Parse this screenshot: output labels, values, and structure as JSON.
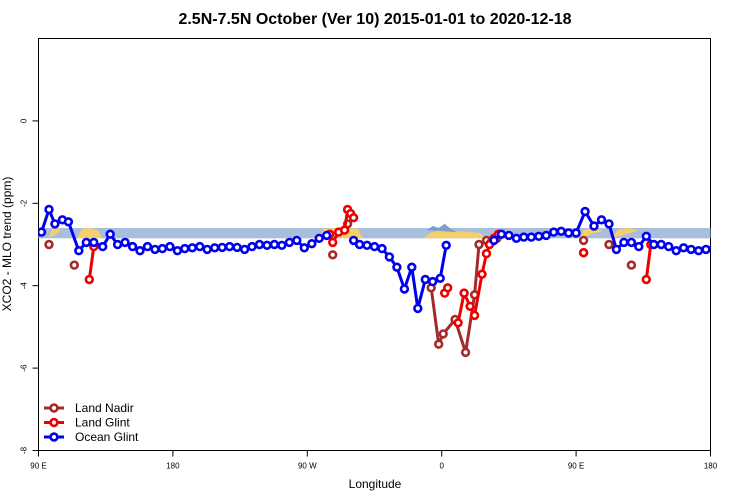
{
  "chart_data": {
    "type": "line",
    "title": "2.5N-7.5N October (Ver 10)   2015-01-01 to 2020-12-18",
    "xlabel": "Longitude",
    "ylabel": "XCO2 - MLO trend (ppm)",
    "xlim": [
      0,
      450
    ],
    "ylim": [
      -8,
      2
    ],
    "x_ticks": [
      {
        "value": 0,
        "label": "90 E"
      },
      {
        "value": 90,
        "label": "180"
      },
      {
        "value": 180,
        "label": "90 W"
      },
      {
        "value": 270,
        "label": "0"
      },
      {
        "value": 360,
        "label": "90 E"
      },
      {
        "value": 450,
        "label": "180"
      }
    ],
    "y_ticks": [
      {
        "value": 0,
        "label": "0"
      },
      {
        "value": -2,
        "label": "-2"
      },
      {
        "value": -4,
        "label": "-4"
      },
      {
        "value": -6,
        "label": "-6"
      },
      {
        "value": -8,
        "label": "-8"
      }
    ],
    "legend_position": "bottom-left",
    "background_band": {
      "y_low": -2.85,
      "y_high": -2.6,
      "color": "#a8bedd"
    },
    "land_fill": {
      "color": "#f5cf6a",
      "segments": [
        [
          [
            7,
            -2.85
          ],
          [
            9,
            -2.62
          ],
          [
            13,
            -2.6
          ],
          [
            15,
            -2.66
          ]
        ],
        [
          [
            26,
            -2.85
          ],
          [
            29,
            -2.62
          ],
          [
            35,
            -2.6
          ],
          [
            40,
            -2.66
          ],
          [
            43,
            -2.85
          ]
        ],
        [
          [
            188,
            -2.85
          ],
          [
            191,
            -2.62
          ],
          [
            204,
            -2.6
          ],
          [
            214,
            -2.62
          ],
          [
            217,
            -2.85
          ]
        ],
        [
          [
            258,
            -2.85
          ],
          [
            262,
            -2.72
          ],
          [
            268,
            -2.66
          ],
          [
            282,
            -2.68
          ],
          [
            296,
            -2.72
          ],
          [
            300,
            -2.85
          ]
        ],
        [
          [
            362,
            -2.85
          ],
          [
            365,
            -2.64
          ],
          [
            372,
            -2.6
          ],
          [
            378,
            -2.66
          ]
        ],
        [
          [
            384,
            -2.85
          ],
          [
            388,
            -2.64
          ],
          [
            395,
            -2.6
          ],
          [
            402,
            -2.66
          ]
        ]
      ]
    },
    "ocean_fill": {
      "color": "#7f9ec6",
      "segments": [
        [
          [
            260,
            -2.65
          ],
          [
            264,
            -2.55
          ],
          [
            268,
            -2.6
          ],
          [
            272,
            -2.5
          ],
          [
            276,
            -2.62
          ],
          [
            280,
            -2.7
          ]
        ]
      ]
    },
    "series": [
      {
        "name": "Land Nadir",
        "color": "#a52a2a",
        "segments": [
          [
            [
              7,
              -3.0
            ]
          ],
          [
            [
              24,
              -3.5
            ]
          ],
          [
            [
              197,
              -3.25
            ]
          ],
          [
            [
              207,
              -2.5
            ]
          ],
          [
            [
              263,
              -4.05
            ],
            [
              268,
              -5.42
            ],
            [
              271,
              -5.17
            ],
            [
              279,
              -4.82
            ],
            [
              286,
              -5.62
            ],
            [
              292,
              -4.22
            ],
            [
              295,
              -3.0
            ]
          ],
          [
            [
              300,
              -2.9
            ],
            [
              303,
              -2.95
            ],
            [
              307,
              -2.85
            ]
          ],
          [
            [
              365,
              -2.9
            ]
          ],
          [
            [
              365,
              -3.2
            ]
          ],
          [
            [
              382,
              -3.0
            ]
          ],
          [
            [
              397,
              -3.5
            ]
          ]
        ]
      },
      {
        "name": "Land Glint",
        "color": "#ee0000",
        "segments": [
          [
            [
              34,
              -3.85
            ],
            [
              37,
              -3.05
            ]
          ],
          [
            [
              195,
              -2.75
            ],
            [
              197,
              -2.95
            ],
            [
              201,
              -2.7
            ],
            [
              205,
              -2.65
            ],
            [
              207,
              -2.15
            ],
            [
              209,
              -2.25
            ],
            [
              211,
              -2.35
            ]
          ],
          [
            [
              272,
              -4.18
            ],
            [
              274,
              -4.05
            ]
          ],
          [
            [
              281,
              -4.9
            ],
            [
              285,
              -4.18
            ],
            [
              289,
              -4.5
            ],
            [
              292,
              -4.72
            ],
            [
              297,
              -3.72
            ],
            [
              300,
              -3.22
            ],
            [
              302,
              -3.0
            ],
            [
              305,
              -2.85
            ],
            [
              308,
              -2.75
            ]
          ],
          [
            [
              365,
              -3.2
            ]
          ],
          [
            [
              407,
              -3.85
            ],
            [
              410,
              -3.0
            ]
          ]
        ]
      },
      {
        "name": "Ocean Glint",
        "color": "#0000ee",
        "segments": [
          [
            [
              2,
              -2.7
            ],
            [
              7,
              -2.15
            ],
            [
              11,
              -2.5
            ],
            [
              16,
              -2.4
            ],
            [
              20,
              -2.45
            ],
            [
              27,
              -3.15
            ],
            [
              32,
              -2.95
            ],
            [
              37,
              -2.95
            ],
            [
              43,
              -3.05
            ],
            [
              48,
              -2.75
            ],
            [
              53,
              -3.0
            ],
            [
              58,
              -2.95
            ],
            [
              63,
              -3.05
            ],
            [
              68,
              -3.15
            ],
            [
              73,
              -3.05
            ],
            [
              78,
              -3.12
            ],
            [
              83,
              -3.1
            ],
            [
              88,
              -3.05
            ],
            [
              93,
              -3.15
            ],
            [
              98,
              -3.1
            ],
            [
              103,
              -3.08
            ],
            [
              108,
              -3.05
            ],
            [
              113,
              -3.12
            ],
            [
              118,
              -3.08
            ],
            [
              123,
              -3.07
            ],
            [
              128,
              -3.05
            ],
            [
              133,
              -3.07
            ],
            [
              138,
              -3.12
            ],
            [
              143,
              -3.05
            ],
            [
              148,
              -3.0
            ],
            [
              153,
              -3.02
            ],
            [
              158,
              -3.0
            ],
            [
              163,
              -3.02
            ],
            [
              168,
              -2.95
            ],
            [
              173,
              -2.9
            ],
            [
              178,
              -3.08
            ],
            [
              183,
              -2.98
            ],
            [
              188,
              -2.85
            ],
            [
              193,
              -2.78
            ]
          ],
          [
            [
              211,
              -2.9
            ],
            [
              215,
              -3.0
            ],
            [
              220,
              -3.02
            ],
            [
              225,
              -3.05
            ],
            [
              230,
              -3.1
            ],
            [
              235,
              -3.3
            ],
            [
              240,
              -3.55
            ],
            [
              245,
              -4.08
            ],
            [
              250,
              -3.55
            ],
            [
              254,
              -4.55
            ],
            [
              259,
              -3.85
            ],
            [
              264,
              -3.9
            ],
            [
              269,
              -3.82
            ],
            [
              273,
              -3.02
            ]
          ],
          [
            [
              305,
              -2.9
            ],
            [
              310,
              -2.75
            ],
            [
              315,
              -2.78
            ],
            [
              320,
              -2.85
            ],
            [
              325,
              -2.82
            ],
            [
              330,
              -2.82
            ],
            [
              335,
              -2.8
            ],
            [
              340,
              -2.78
            ],
            [
              345,
              -2.7
            ],
            [
              350,
              -2.68
            ],
            [
              355,
              -2.72
            ],
            [
              360,
              -2.72
            ],
            [
              366,
              -2.2
            ],
            [
              372,
              -2.55
            ],
            [
              377,
              -2.4
            ],
            [
              382,
              -2.5
            ],
            [
              387,
              -3.12
            ],
            [
              392,
              -2.95
            ],
            [
              397,
              -2.95
            ],
            [
              402,
              -3.05
            ],
            [
              407,
              -2.8
            ],
            [
              412,
              -3.0
            ],
            [
              417,
              -3.0
            ],
            [
              422,
              -3.05
            ],
            [
              427,
              -3.15
            ],
            [
              432,
              -3.08
            ],
            [
              437,
              -3.12
            ],
            [
              442,
              -3.15
            ],
            [
              447,
              -3.12
            ],
            [
              452,
              -3.1
            ]
          ]
        ]
      }
    ]
  }
}
